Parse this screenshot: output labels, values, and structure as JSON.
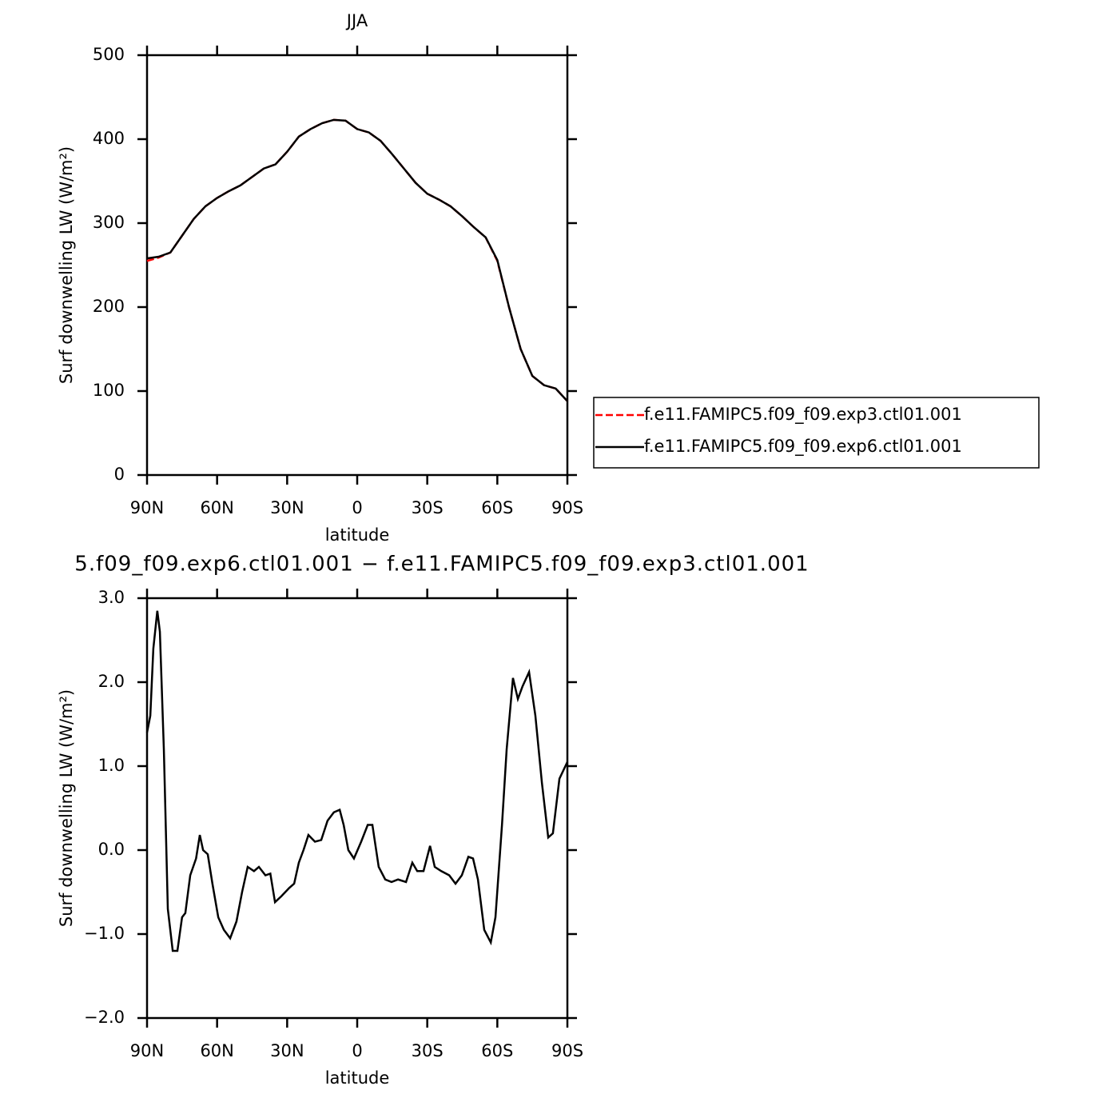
{
  "chart_data": [
    {
      "type": "line",
      "title": "JJA",
      "xlabel": "latitude",
      "ylabel": "Surf downwelling LW (W/m²)",
      "x": [
        90,
        85,
        80,
        75,
        70,
        65,
        60,
        55,
        50,
        45,
        40,
        35,
        30,
        25,
        20,
        15,
        10,
        5,
        0,
        -5,
        -10,
        -15,
        -20,
        -25,
        -30,
        -35,
        -40,
        -45,
        -50,
        -55,
        -60,
        -65,
        -70,
        -75,
        -80,
        -85,
        -90
      ],
      "xlim": [
        90,
        -90
      ],
      "xticks": [
        {
          "value": 90,
          "label": "90N"
        },
        {
          "value": 60,
          "label": "60N"
        },
        {
          "value": 30,
          "label": "30N"
        },
        0,
        {
          "value": -30,
          "label": "30S"
        },
        {
          "value": -60,
          "label": "60S"
        },
        {
          "value": -90,
          "label": "90S"
        }
      ],
      "ylim": [
        0,
        500
      ],
      "yticks": [
        0,
        100,
        200,
        300,
        400,
        500
      ],
      "series": [
        {
          "name": "f.e11.FAMIPC5.f09_f09.exp3.ctl01.001",
          "color": "#ff0000",
          "dash": true,
          "values": [
            255,
            259,
            265,
            285,
            305,
            320,
            330,
            338,
            345,
            355,
            365,
            370,
            385,
            403,
            412,
            419,
            423,
            422,
            412,
            408,
            398,
            382,
            365,
            348,
            335,
            328,
            320,
            308,
            295,
            283,
            255,
            200,
            150,
            118,
            107,
            103,
            88
          ]
        },
        {
          "name": "f.e11.FAMIPC5.f09_f09.exp6.ctl01.001",
          "color": "#000000",
          "dash": false,
          "values": [
            258,
            260,
            265,
            285,
            305,
            320,
            330,
            338,
            345,
            355,
            365,
            370,
            385,
            403,
            412,
            419,
            423,
            422,
            412,
            408,
            398,
            382,
            365,
            348,
            335,
            328,
            320,
            308,
            295,
            283,
            256,
            200,
            150,
            118,
            107,
            103,
            88
          ]
        }
      ]
    },
    {
      "type": "line",
      "title": "5.f09_f09.exp6.ctl01.001 − f.e11.FAMIPC5.f09_f09.exp3.ctl01.001",
      "xlabel": "latitude",
      "ylabel": "Surf downwelling LW (W/m²)",
      "x": [
        90,
        88.6,
        87.3,
        85.6,
        84.5,
        82.8,
        81.1,
        79,
        77,
        75,
        73.6,
        71.5,
        69,
        67.4,
        66,
        64,
        62,
        59.5,
        57.1,
        54.4,
        51.7,
        49.3,
        46.9,
        44.2,
        42.1,
        39.3,
        37.2,
        35.2,
        32.5,
        29.1,
        27,
        25,
        23,
        20.9,
        18.1,
        15.4,
        12.7,
        10,
        7.5,
        5.8,
        3.8,
        1.4,
        -1.7,
        -4.5,
        -6.5,
        -9.2,
        -12,
        -14.7,
        -17.5,
        -20.9,
        -23.6,
        -25.7,
        -28.4,
        -31.2,
        -33.2,
        -36,
        -39.4,
        -42.1,
        -44.8,
        -47.6,
        -49.6,
        -51.7,
        -54.4,
        -57.2,
        -59.2,
        -62,
        -64,
        -66.7,
        -68.8,
        -70.8,
        -73.6,
        -76.3,
        -79.1,
        -81.8,
        -83.8,
        -86.6,
        -90
      ],
      "xlim": [
        90,
        -90
      ],
      "xticks": [
        {
          "value": 90,
          "label": "90N"
        },
        {
          "value": 60,
          "label": "60N"
        },
        {
          "value": 30,
          "label": "30N"
        },
        0,
        {
          "value": -30,
          "label": "30S"
        },
        {
          "value": -60,
          "label": "60S"
        },
        {
          "value": -90,
          "label": "90S"
        }
      ],
      "ylim": [
        -2,
        3
      ],
      "yticks": [
        {
          "value": -2,
          "label": "−2.0"
        },
        {
          "value": -1,
          "label": "−1.0"
        },
        {
          "value": 0,
          "label": "0.0"
        },
        {
          "value": 1,
          "label": "1.0"
        },
        {
          "value": 2,
          "label": "2.0"
        },
        {
          "value": 3,
          "label": "3.0"
        }
      ],
      "series": [
        {
          "color": "#000000",
          "dash": false,
          "values": [
            1.4,
            1.6,
            2.4,
            2.85,
            2.6,
            1.2,
            -0.7,
            -1.2,
            -1.2,
            -0.8,
            -0.75,
            -0.3,
            -0.1,
            0.18,
            0,
            -0.05,
            -0.4,
            -0.8,
            -0.95,
            -1.05,
            -0.85,
            -0.5,
            -0.2,
            -0.25,
            -0.2,
            -0.3,
            -0.28,
            -0.62,
            -0.55,
            -0.45,
            -0.4,
            -0.15,
            0,
            0.18,
            0.1,
            0.12,
            0.35,
            0.45,
            0.48,
            0.3,
            0,
            -0.1,
            0.1,
            0.3,
            0.3,
            -0.2,
            -0.35,
            -0.38,
            -0.35,
            -0.38,
            -0.15,
            -0.25,
            -0.25,
            0.05,
            -0.2,
            -0.25,
            -0.3,
            -0.4,
            -0.3,
            -0.08,
            -0.1,
            -0.35,
            -0.95,
            -1.1,
            -0.8,
            0.3,
            1.2,
            2.05,
            1.8,
            1.95,
            2.12,
            1.6,
            0.8,
            0.15,
            0.2,
            0.85,
            1.05
          ]
        }
      ]
    }
  ]
}
